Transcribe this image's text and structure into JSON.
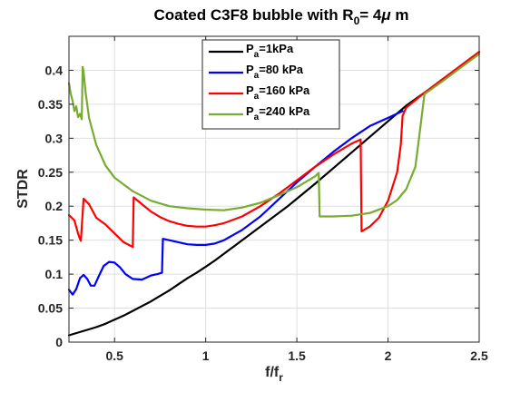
{
  "chart_data": {
    "type": "line",
    "title": {
      "main": "Coated C3F8 bubble with R",
      "sub": "0",
      "tail": "= 4",
      "mu": "μ",
      "unit": " m"
    },
    "xlabel": {
      "main": "f/f",
      "sub": "r"
    },
    "ylabel": "STDR",
    "xlim": [
      0.25,
      2.5
    ],
    "ylim": [
      0,
      0.45
    ],
    "xticks": [
      0.5,
      1,
      1.5,
      2,
      2.5
    ],
    "xtick_labels": [
      "0.5",
      "1",
      "1.5",
      "2",
      "2.5"
    ],
    "yticks": [
      0,
      0.05,
      0.1,
      0.15,
      0.2,
      0.25,
      0.3,
      0.35,
      0.4
    ],
    "ytick_labels": [
      "0",
      "0.05",
      "0.1",
      "0.15",
      "0.2",
      "0.25",
      "0.3",
      "0.35",
      "0.4"
    ],
    "grid": true,
    "legend_position": "top-center",
    "series": [
      {
        "name": {
          "main": "P",
          "sub": "a",
          "rest": "=1kPa"
        },
        "color": "#000000",
        "x": [
          0.25,
          0.3,
          0.35,
          0.4,
          0.45,
          0.5,
          0.55,
          0.6,
          0.65,
          0.7,
          0.75,
          0.8,
          0.85,
          0.9,
          0.95,
          1.0,
          1.05,
          1.1,
          1.15,
          1.2,
          1.25,
          1.3,
          1.35,
          1.4,
          1.45,
          1.5,
          1.6,
          1.7,
          1.8,
          1.9,
          2.0,
          2.1,
          2.2,
          2.3,
          2.4,
          2.5
        ],
        "y": [
          0.01,
          0.014,
          0.018,
          0.022,
          0.027,
          0.033,
          0.039,
          0.046,
          0.053,
          0.06,
          0.068,
          0.076,
          0.085,
          0.094,
          0.102,
          0.111,
          0.12,
          0.13,
          0.14,
          0.15,
          0.16,
          0.17,
          0.18,
          0.19,
          0.2,
          0.211,
          0.233,
          0.256,
          0.279,
          0.302,
          0.325,
          0.348,
          0.367,
          0.387,
          0.407,
          0.427
        ]
      },
      {
        "name": {
          "main": "P",
          "sub": "a",
          "rest": "=80 kPa"
        },
        "color": "#0000ff",
        "x": [
          0.25,
          0.27,
          0.29,
          0.31,
          0.33,
          0.35,
          0.37,
          0.39,
          0.41,
          0.44,
          0.47,
          0.5,
          0.53,
          0.56,
          0.6,
          0.65,
          0.7,
          0.735,
          0.76,
          0.765,
          0.8,
          0.85,
          0.9,
          0.95,
          1.0,
          1.05,
          1.1,
          1.2,
          1.3,
          1.4,
          1.5,
          1.6,
          1.7,
          1.8,
          1.9,
          2.0,
          2.08
        ],
        "y": [
          0.077,
          0.07,
          0.078,
          0.094,
          0.099,
          0.093,
          0.083,
          0.083,
          0.095,
          0.112,
          0.118,
          0.117,
          0.11,
          0.1,
          0.093,
          0.092,
          0.098,
          0.1,
          0.102,
          0.152,
          0.15,
          0.147,
          0.144,
          0.143,
          0.143,
          0.145,
          0.15,
          0.165,
          0.185,
          0.21,
          0.235,
          0.258,
          0.28,
          0.3,
          0.318,
          0.33,
          0.34
        ]
      },
      {
        "name": {
          "main": "P",
          "sub": "a",
          "rest": "=160 kPa"
        },
        "color": "#ff0000",
        "x": [
          0.25,
          0.28,
          0.3,
          0.31,
          0.315,
          0.33,
          0.36,
          0.4,
          0.45,
          0.5,
          0.55,
          0.6,
          0.605,
          0.65,
          0.7,
          0.75,
          0.8,
          0.85,
          0.9,
          0.95,
          1.0,
          1.05,
          1.1,
          1.2,
          1.3,
          1.4,
          1.5,
          1.6,
          1.7,
          1.8,
          1.85,
          1.855,
          1.9,
          1.95,
          2.0,
          2.05,
          2.07,
          2.08,
          2.1,
          2.2,
          2.3,
          2.4,
          2.5
        ],
        "y": [
          0.187,
          0.179,
          0.16,
          0.152,
          0.149,
          0.211,
          0.203,
          0.183,
          0.173,
          0.16,
          0.147,
          0.14,
          0.213,
          0.203,
          0.192,
          0.184,
          0.178,
          0.174,
          0.171,
          0.17,
          0.17,
          0.172,
          0.175,
          0.185,
          0.2,
          0.218,
          0.238,
          0.258,
          0.276,
          0.292,
          0.298,
          0.163,
          0.17,
          0.183,
          0.208,
          0.25,
          0.29,
          0.333,
          0.345,
          0.367,
          0.387,
          0.407,
          0.427
        ]
      },
      {
        "name": {
          "main": "P",
          "sub": "a",
          "rest": "=240 kPa"
        },
        "color": "#77ac30",
        "x": [
          0.25,
          0.26,
          0.27,
          0.28,
          0.29,
          0.3,
          0.31,
          0.32,
          0.325,
          0.33,
          0.34,
          0.36,
          0.4,
          0.45,
          0.5,
          0.6,
          0.7,
          0.8,
          0.9,
          1.0,
          1.1,
          1.2,
          1.3,
          1.4,
          1.5,
          1.6,
          1.62,
          1.625,
          1.7,
          1.8,
          1.9,
          2.0,
          2.05,
          2.1,
          2.15,
          2.17,
          2.2,
          2.3,
          2.4,
          2.5
        ],
        "y": [
          0.381,
          0.365,
          0.355,
          0.34,
          0.347,
          0.331,
          0.336,
          0.328,
          0.405,
          0.398,
          0.37,
          0.33,
          0.29,
          0.26,
          0.242,
          0.222,
          0.208,
          0.2,
          0.197,
          0.195,
          0.194,
          0.198,
          0.205,
          0.216,
          0.228,
          0.244,
          0.249,
          0.185,
          0.185,
          0.186,
          0.19,
          0.2,
          0.209,
          0.225,
          0.258,
          0.3,
          0.365,
          0.384,
          0.404,
          0.424
        ]
      }
    ]
  }
}
